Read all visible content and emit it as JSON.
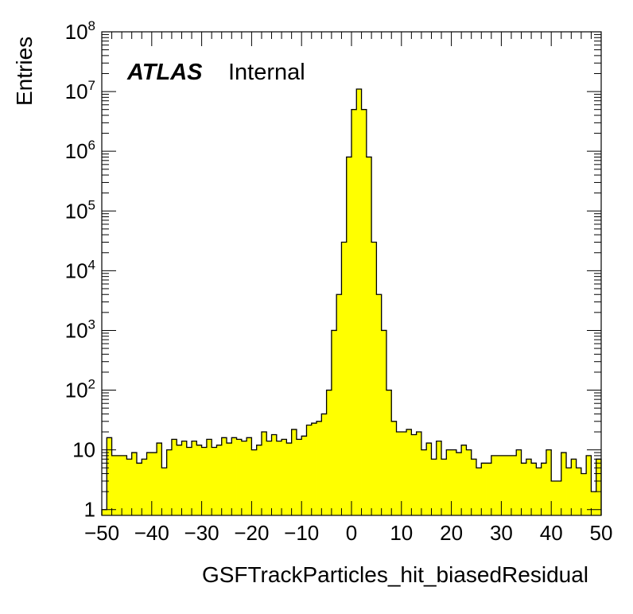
{
  "chart_data": {
    "type": "bar",
    "style": "histogram",
    "fill_color": "#ffff00",
    "line_color": "#000000",
    "title": "",
    "xlabel": "GSFTrackParticles_hit_biasedResidual",
    "ylabel": "Entries",
    "xlim": [
      -50,
      50
    ],
    "ylim": [
      0.8,
      100000000
    ],
    "y_scale": "log",
    "grid": false,
    "x_ticks": [
      "−50",
      "−40",
      "−30",
      "−20",
      "−10",
      "0",
      "10",
      "20",
      "30",
      "40",
      "50"
    ],
    "y_ticks": [
      {
        "base": "1",
        "exp": ""
      },
      {
        "base": "10",
        "exp": ""
      },
      {
        "base": "10",
        "exp": "2"
      },
      {
        "base": "10",
        "exp": "3"
      },
      {
        "base": "10",
        "exp": "4"
      },
      {
        "base": "10",
        "exp": "5"
      },
      {
        "base": "10",
        "exp": "6"
      },
      {
        "base": "10",
        "exp": "7"
      },
      {
        "base": "10",
        "exp": "8"
      }
    ],
    "bin_edges_start": -50,
    "bin_width": 1,
    "values": [
      1,
      16,
      8,
      8,
      8,
      7,
      9,
      6,
      7,
      9,
      9,
      13,
      5,
      10,
      15,
      12,
      14,
      11,
      14,
      12,
      11,
      15,
      11,
      12,
      16,
      13,
      16,
      15,
      14,
      16,
      10,
      12,
      20,
      14,
      18,
      14,
      15,
      13,
      22,
      15,
      17,
      26,
      28,
      30,
      40,
      100,
      1000,
      4000,
      30000,
      800000,
      5000000,
      11000000,
      5000000,
      800000,
      30000,
      4000,
      1000,
      100,
      30,
      20,
      20,
      22,
      18,
      20,
      10,
      13,
      7,
      14,
      7,
      10,
      10,
      9,
      12,
      10,
      7,
      5,
      6,
      6,
      8,
      8,
      8,
      8,
      8,
      10,
      6,
      7,
      6,
      5,
      6,
      10,
      3,
      3,
      9,
      5,
      7,
      5,
      4,
      8,
      2,
      7
    ]
  },
  "label": {
    "atlas": "ATLAS",
    "internal": "Internal"
  }
}
